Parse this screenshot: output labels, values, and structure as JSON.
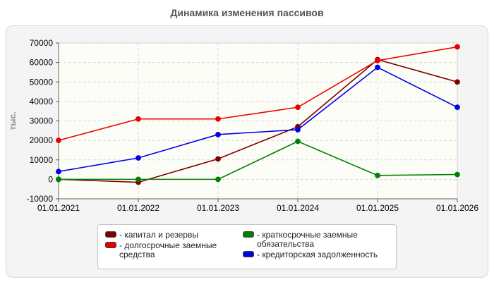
{
  "chart_data": {
    "type": "line",
    "title": "Динамика изменения пассивов",
    "ylabel": "тыс.",
    "xlabel": "",
    "x": [
      "01.01.2021",
      "01.01.2022",
      "01.01.2023",
      "01.01.2024",
      "01.01.2025",
      "01.01.2026"
    ],
    "ylim": [
      -10000,
      70000
    ],
    "yticks": [
      -10000,
      0,
      10000,
      20000,
      30000,
      40000,
      50000,
      60000,
      70000
    ],
    "grid": true,
    "legend_position": "bottom",
    "series": [
      {
        "name": "капитал и резервы",
        "color": "#800000",
        "values": [
          0,
          -1500,
          10500,
          27000,
          61500,
          50000
        ]
      },
      {
        "name": "долгосрочные заемные средства",
        "color": "#e60000",
        "values": [
          20000,
          31000,
          31000,
          37000,
          61000,
          68000
        ]
      },
      {
        "name": "краткосрочные заемные обязательства",
        "color": "#008000",
        "values": [
          0,
          0,
          0,
          19500,
          2000,
          2500
        ]
      },
      {
        "name": "кредиторская задолженность",
        "color": "#0000e6",
        "values": [
          4000,
          11000,
          23000,
          25500,
          57500,
          37000
        ]
      }
    ]
  }
}
